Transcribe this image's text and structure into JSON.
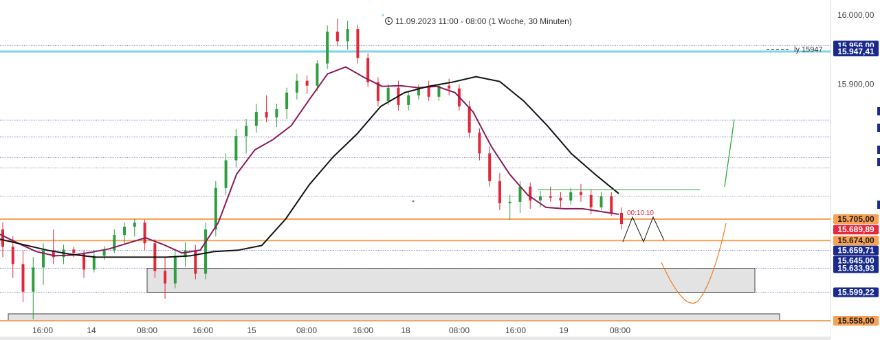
{
  "header": {
    "range_info": "11.09.2023 11:00 - 08:00  (1 Woche, 30 Minuten)",
    "timer_label": "00:10:10",
    "partial_line_label": "ly 15947"
  },
  "colors": {
    "bull": "#2e9e3f",
    "bear": "#e0283a",
    "ema_fast": "#8b1a5a",
    "ema_slow": "#111111",
    "level_orange": "#f7a155",
    "level_cyan": "#7ad5e6",
    "grid_blue": "#5a5ab4",
    "zone_fill": "#e3e3e3",
    "projection_green": "#2eaa3c",
    "projection_orange": "#f07b20",
    "label_blue": "#1a2a8c",
    "label_red": "#e6283c"
  },
  "chart_data": {
    "type": "candlestick",
    "ylim": [
      15550,
      16010
    ],
    "y_ticks": [
      {
        "value": 16000,
        "label": "16.000,00"
      },
      {
        "value": 15900,
        "label": "15.900,00"
      }
    ],
    "x_ticks": [
      "16:00",
      "14",
      "08:00",
      "16:00",
      "15",
      "08:00",
      "16:00",
      "18",
      "08:00",
      "16:00",
      "19",
      "08:00"
    ],
    "price_labels": [
      {
        "value": 15956,
        "label": "15.956,00",
        "bg": "#1a2a8c",
        "fg": "#ffffff"
      },
      {
        "value": 15947.41,
        "label": "15.947,41",
        "bg": "#1a2a8c",
        "fg": "#ffffff"
      },
      {
        "value": 15705,
        "label": "15.705,00",
        "bg": "#f7a155",
        "fg": "#1a1a1a"
      },
      {
        "value": 15689.89,
        "label": "15.689,89",
        "bg": "#e6283c",
        "fg": "#ffffff"
      },
      {
        "value": 15674,
        "label": "15.674,00",
        "bg": "#f7a155",
        "fg": "#1a1a1a"
      },
      {
        "value": 15659.71,
        "label": "15.659,71",
        "bg": "#1a2a8c",
        "fg": "#ffffff"
      },
      {
        "value": 15645,
        "label": "15.645,00",
        "bg": "#1a2a8c",
        "fg": "#ffffff"
      },
      {
        "value": 15633.93,
        "label": "15.633,93",
        "bg": "#1a2a8c",
        "fg": "#ffffff"
      },
      {
        "value": 15599.22,
        "label": "15.599,22",
        "bg": "#1a2a8c",
        "fg": "#ffffff"
      },
      {
        "value": 15558,
        "label": "15.558,00",
        "bg": "#f7a155",
        "fg": "#1a1a1a"
      }
    ],
    "horizontal_levels": [
      {
        "value": 15947.41,
        "style": "cyan"
      },
      {
        "value": 15705,
        "style": "orange"
      },
      {
        "value": 15674,
        "style": "orange"
      },
      {
        "value": 15558,
        "style": "orange"
      }
    ],
    "grid_levels": [
      15956,
      15848,
      15824,
      15794,
      15779,
      15738,
      15659.71,
      15633.93,
      15599.22
    ],
    "zones": [
      {
        "x_start": "08:00 (14)",
        "x_end": "projection",
        "y_low": 15599.22,
        "y_high": 15633.93
      },
      {
        "x_start": "start",
        "x_end": "projection",
        "y_low": 15558,
        "y_high": 15568
      }
    ],
    "ema_fast_values": [
      15683,
      15670,
      15658,
      15652,
      15653,
      15657,
      15662,
      15670,
      15678,
      15668,
      15656,
      15660,
      15700,
      15770,
      15805,
      15820,
      15840,
      15878,
      15915,
      15925,
      15910,
      15897,
      15898,
      15895,
      15897,
      15888,
      15860,
      15810,
      15770,
      15740,
      15722,
      15720,
      15720,
      15716,
      15712
    ],
    "ema_slow_values": [
      15676,
      15668,
      15660,
      15654,
      15650,
      15650,
      15650,
      15650,
      15652,
      15658,
      15660,
      15667,
      15705,
      15755,
      15795,
      15828,
      15868,
      15888,
      15897,
      15903,
      15911,
      15904,
      15876,
      15840,
      15800,
      15770,
      15742
    ],
    "candles": [
      [
        15690,
        15700,
        15650,
        15665
      ],
      [
        15665,
        15680,
        15620,
        15640
      ],
      [
        15640,
        15660,
        15585,
        15600
      ],
      [
        15600,
        15650,
        15560,
        15635
      ],
      [
        15635,
        15670,
        15610,
        15660
      ],
      [
        15660,
        15690,
        15640,
        15650
      ],
      [
        15650,
        15668,
        15640,
        15661
      ],
      [
        15661,
        15665,
        15650,
        15656
      ],
      [
        15656,
        15660,
        15620,
        15632
      ],
      [
        15632,
        15660,
        15628,
        15652
      ],
      [
        15652,
        15666,
        15646,
        15660
      ],
      [
        15660,
        15690,
        15656,
        15682
      ],
      [
        15682,
        15700,
        15670,
        15694
      ],
      [
        15694,
        15706,
        15680,
        15700
      ],
      [
        15700,
        15704,
        15660,
        15670
      ],
      [
        15670,
        15676,
        15620,
        15630
      ],
      [
        15630,
        15650,
        15590,
        15612
      ],
      [
        15612,
        15660,
        15605,
        15650
      ],
      [
        15650,
        15672,
        15636,
        15660
      ],
      [
        15660,
        15668,
        15618,
        15626
      ],
      [
        15626,
        15700,
        15618,
        15690
      ],
      [
        15690,
        15760,
        15680,
        15750
      ],
      [
        15750,
        15800,
        15740,
        15790
      ],
      [
        15790,
        15835,
        15780,
        15825
      ],
      [
        15825,
        15850,
        15800,
        15840
      ],
      [
        15840,
        15872,
        15830,
        15860
      ],
      [
        15860,
        15884,
        15845,
        15852
      ],
      [
        15852,
        15872,
        15838,
        15864
      ],
      [
        15864,
        15895,
        15850,
        15888
      ],
      [
        15888,
        15915,
        15878,
        15905
      ],
      [
        15905,
        15913,
        15886,
        15898
      ],
      [
        15898,
        15935,
        15890,
        15930
      ],
      [
        15930,
        15985,
        15922,
        15976
      ],
      [
        15976,
        15995,
        15955,
        15962
      ],
      [
        15962,
        15992,
        15950,
        15980
      ],
      [
        15980,
        15986,
        15930,
        15938
      ],
      [
        15938,
        15945,
        15896,
        15903
      ],
      [
        15903,
        15910,
        15868,
        15876
      ],
      [
        15876,
        15900,
        15870,
        15895
      ],
      [
        15895,
        15905,
        15862,
        15870
      ],
      [
        15870,
        15890,
        15862,
        15884
      ],
      [
        15884,
        15900,
        15878,
        15896
      ],
      [
        15896,
        15905,
        15876,
        15882
      ],
      [
        15882,
        15900,
        15876,
        15898
      ],
      [
        15898,
        15908,
        15884,
        15894
      ],
      [
        15894,
        15900,
        15862,
        15868
      ],
      [
        15868,
        15876,
        15822,
        15830
      ],
      [
        15830,
        15836,
        15790,
        15800
      ],
      [
        15800,
        15810,
        15752,
        15760
      ],
      [
        15760,
        15772,
        15718,
        15728
      ],
      [
        15728,
        15740,
        15704,
        15730
      ],
      [
        15730,
        15760,
        15714,
        15752
      ],
      [
        15752,
        15758,
        15720,
        15732
      ],
      [
        15732,
        15746,
        15722,
        15738
      ],
      [
        15738,
        15752,
        15730,
        15736
      ],
      [
        15736,
        15744,
        15722,
        15732
      ],
      [
        15732,
        15750,
        15726,
        15744
      ],
      [
        15744,
        15756,
        15730,
        15740
      ],
      [
        15740,
        15748,
        15712,
        15722
      ],
      [
        15722,
        15744,
        15718,
        15738
      ],
      [
        15738,
        15744,
        15710,
        15714
      ],
      [
        15714,
        15722,
        15690,
        15698
      ]
    ]
  }
}
